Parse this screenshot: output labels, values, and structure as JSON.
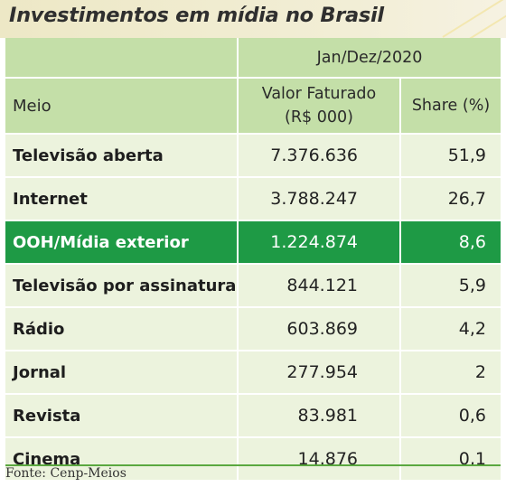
{
  "title": "Investimentos em mídia no Brasil",
  "table": {
    "period": "Jan/Dez/2020",
    "headers": {
      "meio": "Meio",
      "valor_line1": "Valor Faturado",
      "valor_line2": "(R$ 000)",
      "share": "Share (%)"
    },
    "rows": [
      {
        "meio": "Televisão aberta",
        "valor": "7.376.636",
        "share": "51,9"
      },
      {
        "meio": "Internet",
        "valor": "3.788.247",
        "share": "26,7"
      },
      {
        "meio": "OOH/Mídia exterior",
        "valor": "1.224.874",
        "share": "8,6"
      },
      {
        "meio": "Televisão por assinatura",
        "valor": "844.121",
        "share": "5,9"
      },
      {
        "meio": "Rádio",
        "valor": "603.869",
        "share": "4,2"
      },
      {
        "meio": "Jornal",
        "valor": "277.954",
        "share": "2"
      },
      {
        "meio": "Revista",
        "valor": "83.981",
        "share": "0,6"
      },
      {
        "meio": "Cinema",
        "valor": "14.876",
        "share": "0,1"
      }
    ],
    "highlight_row": "OOH/Mídia exterior"
  },
  "source": "Fonte: Cenp-Meios",
  "colors": {
    "header_fill": "#c4dfa8",
    "row_fill": "#ecf3dd",
    "highlight_fill": "#1e9a45",
    "title_band": "#ede8c6"
  }
}
